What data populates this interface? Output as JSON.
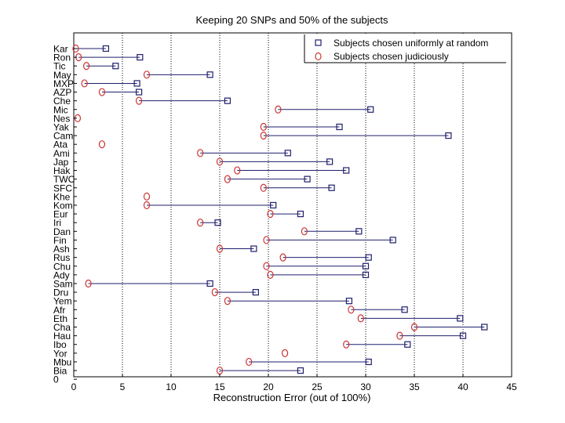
{
  "chart_data": {
    "type": "scatter",
    "title": "Keeping 20 SNPs and 50% of the subjects",
    "xlabel": "Reconstruction Error (out of 100%)",
    "ylabel": "",
    "xlim": [
      0,
      45
    ],
    "xticks": [
      0,
      5,
      10,
      15,
      20,
      25,
      30,
      35,
      40,
      45
    ],
    "gridlines": [
      5,
      10,
      15,
      20,
      25,
      30,
      35,
      40
    ],
    "categories": [
      "Kar",
      "Ron",
      "Tic",
      "May",
      "MXP",
      "AZP",
      "Che",
      "Mic",
      "Nes",
      "Yak",
      "Cam",
      "Ata",
      "Ami",
      "Jap",
      "Hak",
      "TWC",
      "SFC",
      "Khe",
      "Kom",
      "Eur",
      "Iri",
      "Dan",
      "Fin",
      "Ash",
      "Rus",
      "Chu",
      "Ady",
      "Sam",
      "Dru",
      "Yem",
      "Afr",
      "Eth",
      "Cha",
      "Hau",
      "Ibo",
      "Yor",
      "Mbu",
      "Bia",
      "0"
    ],
    "series": [
      {
        "name": "Subjects chosen uniformly at random",
        "marker": "square",
        "color": "#1f1f6e",
        "values": [
          3.3,
          6.8,
          4.3,
          14.0,
          6.5,
          6.7,
          15.8,
          30.5,
          null,
          27.3,
          38.5,
          null,
          22.0,
          26.3,
          28.0,
          24.0,
          26.5,
          null,
          20.5,
          23.3,
          14.8,
          29.3,
          32.8,
          18.5,
          30.3,
          30.0,
          30.0,
          14.0,
          18.7,
          28.3,
          34.0,
          39.7,
          42.2,
          40.0,
          34.3,
          null,
          30.3,
          23.3,
          null
        ]
      },
      {
        "name": "Subjects chosen judiciously",
        "marker": "circle",
        "color": "#cc3333",
        "values": [
          0.2,
          0.5,
          1.3,
          7.5,
          1.1,
          2.9,
          6.7,
          21.0,
          0.4,
          19.5,
          19.5,
          2.9,
          13.0,
          15.0,
          16.8,
          15.8,
          19.5,
          7.5,
          7.5,
          20.2,
          13.0,
          23.7,
          19.8,
          15.0,
          21.5,
          19.8,
          20.2,
          1.5,
          14.5,
          15.8,
          28.5,
          29.5,
          35.0,
          33.5,
          28.0,
          21.7,
          18.0,
          15.0,
          null
        ]
      }
    ],
    "legend": {
      "position": "top-right",
      "entries": [
        "Subjects chosen uniformly at random",
        "Subjects chosen judiciously"
      ]
    },
    "grid": true
  }
}
